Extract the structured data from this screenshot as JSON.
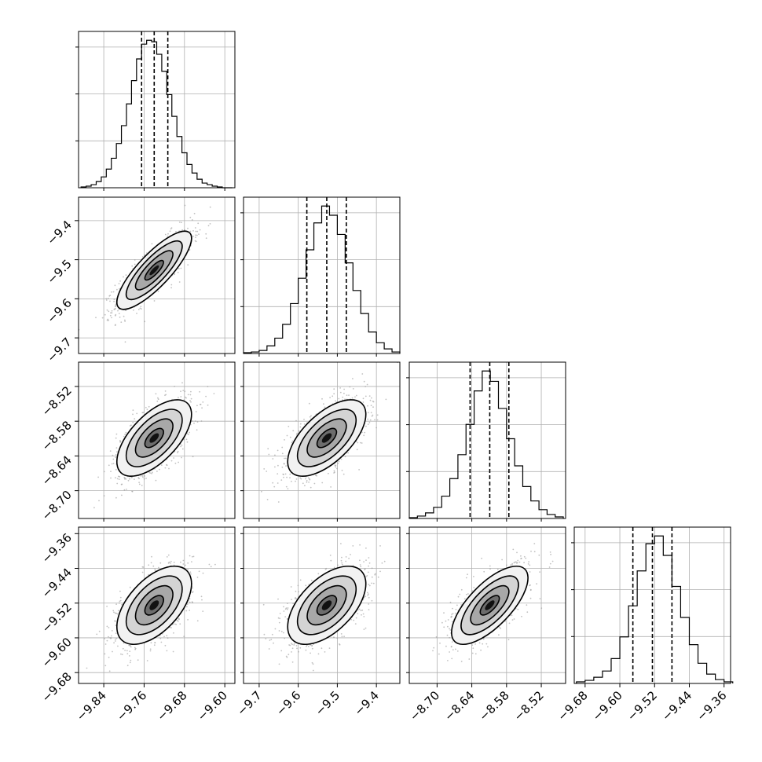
{
  "chart_data": {
    "type": "corner",
    "parameters": 4,
    "axes": [
      {
        "range": [
          -9.89,
          -9.58
        ],
        "ticks": [
          -9.84,
          -9.76,
          -9.68,
          -9.6
        ],
        "tick_labels": [
          "−9.84",
          "−9.76",
          "−9.68",
          "−9.60"
        ],
        "quantiles": [
          -9.765,
          -9.74,
          -9.713
        ],
        "hist_centers": [
          -9.88,
          -9.87,
          -9.86,
          -9.85,
          -9.84,
          -9.83,
          -9.82,
          -9.81,
          -9.8,
          -9.79,
          -9.78,
          -9.77,
          -9.76,
          -9.75,
          -9.74,
          -9.73,
          -9.72,
          -9.71,
          -9.7,
          -9.69,
          -9.68,
          -9.67,
          -9.66,
          -9.65,
          -9.64,
          -9.63,
          -9.62,
          -9.61,
          -9.6,
          -9.59
        ],
        "hist_counts": [
          1,
          2,
          4,
          8,
          14,
          24,
          38,
          57,
          80,
          108,
          138,
          166,
          185,
          190,
          188,
          172,
          150,
          120,
          92,
          66,
          45,
          30,
          19,
          11,
          6,
          4,
          2,
          1,
          0,
          0
        ]
      },
      {
        "range": [
          -9.74,
          -9.34
        ],
        "ticks": [
          -9.7,
          -9.6,
          -9.5,
          -9.4
        ],
        "tick_labels": [
          "−9.7",
          "−9.6",
          "−9.5",
          "−9.4"
        ],
        "quantiles": [
          -9.578,
          -9.527,
          -9.477
        ],
        "hist_centers": [
          -9.73,
          -9.71,
          -9.69,
          -9.67,
          -9.65,
          -9.63,
          -9.61,
          -9.59,
          -9.57,
          -9.55,
          -9.53,
          -9.51,
          -9.49,
          -9.47,
          -9.45,
          -9.43,
          -9.41,
          -9.39,
          -9.37,
          -9.35
        ],
        "hist_counts": [
          1,
          2,
          4,
          10,
          20,
          38,
          65,
          98,
          135,
          170,
          192,
          180,
          155,
          118,
          82,
          52,
          28,
          14,
          6,
          2
        ]
      },
      {
        "range": [
          -8.748,
          -8.478
        ],
        "ticks": [
          -8.7,
          -8.64,
          -8.58,
          -8.52
        ],
        "tick_labels": [
          "−8.70",
          "−8.64",
          "−8.58",
          "−8.52"
        ],
        "quantiles": [
          -8.643,
          -8.609,
          -8.576
        ],
        "hist_centers": [
          -8.741,
          -8.727,
          -8.713,
          -8.699,
          -8.685,
          -8.671,
          -8.657,
          -8.643,
          -8.629,
          -8.615,
          -8.601,
          -8.587,
          -8.573,
          -8.559,
          -8.545,
          -8.531,
          -8.517,
          -8.503,
          -8.489
        ],
        "hist_counts": [
          1,
          3,
          7,
          14,
          28,
          50,
          80,
          118,
          160,
          185,
          172,
          138,
          100,
          66,
          40,
          22,
          11,
          5,
          2
        ]
      },
      {
        "range": [
          -9.705,
          -9.345
        ],
        "ticks": [
          -9.68,
          -9.6,
          -9.52,
          -9.44,
          -9.36
        ],
        "tick_labels": [
          "−9.68",
          "−9.60",
          "−9.52",
          "−9.44",
          "−9.36"
        ],
        "quantiles": [
          -9.57,
          -9.525,
          -9.48
        ],
        "hist_centers": [
          -9.69,
          -9.67,
          -9.65,
          -9.63,
          -9.61,
          -9.59,
          -9.57,
          -9.55,
          -9.53,
          -9.51,
          -9.49,
          -9.47,
          -9.45,
          -9.43,
          -9.41,
          -9.39,
          -9.37,
          -9.35
        ],
        "hist_counts": [
          2,
          4,
          8,
          16,
          32,
          60,
          100,
          145,
          180,
          190,
          165,
          125,
          85,
          50,
          26,
          12,
          5,
          2
        ]
      }
    ],
    "pairs": [
      {
        "xaxis": 0,
        "yaxis": 1,
        "center": [
          -9.74,
          -9.527
        ],
        "sd": [
          0.037,
          0.05
        ],
        "rho": 0.82
      },
      {
        "xaxis": 0,
        "yaxis": 2,
        "center": [
          -9.74,
          -8.609
        ],
        "sd": [
          0.037,
          0.033
        ],
        "rho": 0.62
      },
      {
        "xaxis": 1,
        "yaxis": 2,
        "center": [
          -9.527,
          -8.609
        ],
        "sd": [
          0.05,
          0.033
        ],
        "rho": 0.62
      },
      {
        "xaxis": 0,
        "yaxis": 3,
        "center": [
          -9.74,
          -9.525
        ],
        "sd": [
          0.037,
          0.045
        ],
        "rho": 0.55
      },
      {
        "xaxis": 1,
        "yaxis": 3,
        "center": [
          -9.527,
          -9.525
        ],
        "sd": [
          0.05,
          0.045
        ],
        "rho": 0.55
      },
      {
        "xaxis": 2,
        "yaxis": 3,
        "center": [
          -8.609,
          -9.525
        ],
        "sd": [
          0.033,
          0.045
        ],
        "rho": 0.7
      }
    ],
    "contour_sigma_levels": [
      0.5,
      1.0,
      1.5,
      2.0
    ],
    "grid": true,
    "colors": {
      "line": "#000000",
      "grid": "#b0b0b0",
      "points": "#9a9a9a"
    }
  }
}
